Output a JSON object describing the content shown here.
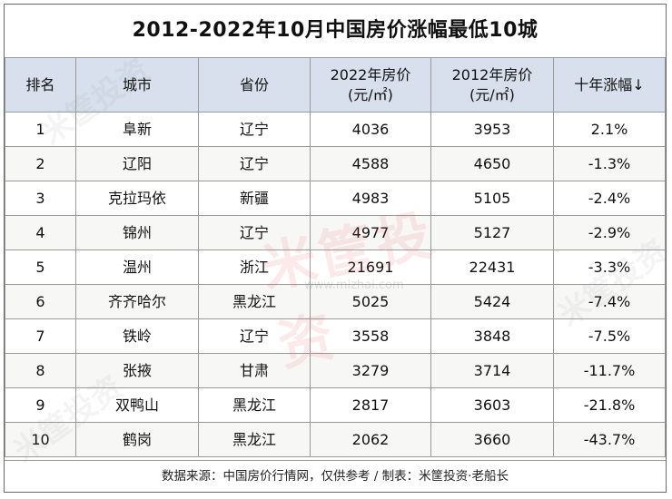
{
  "chart_data": {
    "type": "table",
    "title": "2012-2022年10月中国房价涨幅最低10城",
    "headers": [
      "排名",
      "城市",
      "省份",
      "2022年房价(元/㎡)",
      "2012年房价(元/㎡)",
      "十年涨幅↓"
    ],
    "header_lines": [
      [
        "排名"
      ],
      [
        "城市"
      ],
      [
        "省份"
      ],
      [
        "2022年房价",
        "(元/㎡)"
      ],
      [
        "2012年房价",
        "(元/㎡)"
      ],
      [
        "十年涨幅↓"
      ]
    ],
    "rows": [
      {
        "rank": "1",
        "city": "阜新",
        "province": "辽宁",
        "price_2022": "4036",
        "price_2012": "3953",
        "growth": "2.1%"
      },
      {
        "rank": "2",
        "city": "辽阳",
        "province": "辽宁",
        "price_2022": "4588",
        "price_2012": "4650",
        "growth": "-1.3%"
      },
      {
        "rank": "3",
        "city": "克拉玛依",
        "province": "新疆",
        "price_2022": "4983",
        "price_2012": "5105",
        "growth": "-2.4%"
      },
      {
        "rank": "4",
        "city": "锦州",
        "province": "辽宁",
        "price_2022": "4977",
        "price_2012": "5127",
        "growth": "-2.9%"
      },
      {
        "rank": "5",
        "city": "温州",
        "province": "浙江",
        "price_2022": "21691",
        "price_2012": "22431",
        "growth": "-3.3%"
      },
      {
        "rank": "6",
        "city": "齐齐哈尔",
        "province": "黑龙江",
        "price_2022": "5025",
        "price_2012": "5424",
        "growth": "-7.4%"
      },
      {
        "rank": "7",
        "city": "铁岭",
        "province": "辽宁",
        "price_2022": "3558",
        "price_2012": "3848",
        "growth": "-7.5%"
      },
      {
        "rank": "8",
        "city": "张掖",
        "province": "甘肃",
        "price_2022": "3279",
        "price_2012": "3714",
        "growth": "-11.7%"
      },
      {
        "rank": "9",
        "city": "双鸭山",
        "province": "黑龙江",
        "price_2022": "2817",
        "price_2012": "3603",
        "growth": "-21.8%"
      },
      {
        "rank": "10",
        "city": "鹤岗",
        "province": "黑龙江",
        "price_2022": "2062",
        "price_2012": "3660",
        "growth": "-43.7%"
      }
    ],
    "footer": "数据来源：中国房价行情网，仅供参考 / 制表：米筐投资·老船长"
  },
  "watermark": {
    "main_text": "米筐投资",
    "url": "www.mizhai.com",
    "side_text": "米筐投资"
  },
  "colors": {
    "header_bg": "#d7e0ec",
    "border": "#9a9a9a",
    "zebra": "#f7f8f6"
  }
}
